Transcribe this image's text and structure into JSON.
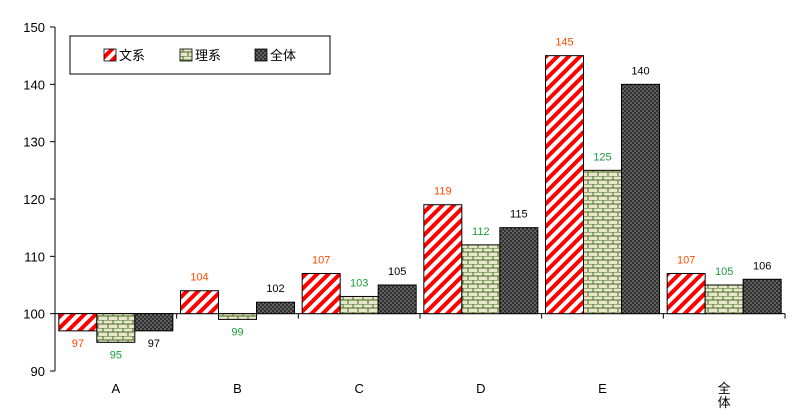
{
  "chart_data": {
    "type": "bar",
    "categories": [
      "A",
      "B",
      "C",
      "D",
      "E",
      "全体"
    ],
    "series": [
      {
        "name": "文系",
        "values": [
          97,
          104,
          107,
          119,
          145,
          107
        ],
        "color": "#ff0000",
        "pattern": "diagonal-stripes",
        "label_color": "#ff4b00"
      },
      {
        "name": "理系",
        "values": [
          95,
          99,
          103,
          112,
          125,
          105
        ],
        "color": "#e6e6c8",
        "pattern": "brick",
        "label_color": "#1a9e3c"
      },
      {
        "name": "全体",
        "values": [
          97,
          102,
          105,
          115,
          140,
          106
        ],
        "color": "#555555",
        "pattern": "dots",
        "label_color": "#000000"
      }
    ],
    "baseline": 100,
    "ylim": [
      90,
      150
    ],
    "yticks": [
      90,
      100,
      110,
      120,
      130,
      140,
      150
    ],
    "grid": false,
    "legend": "top-left",
    "title": "",
    "xlabel": "",
    "ylabel": ""
  }
}
